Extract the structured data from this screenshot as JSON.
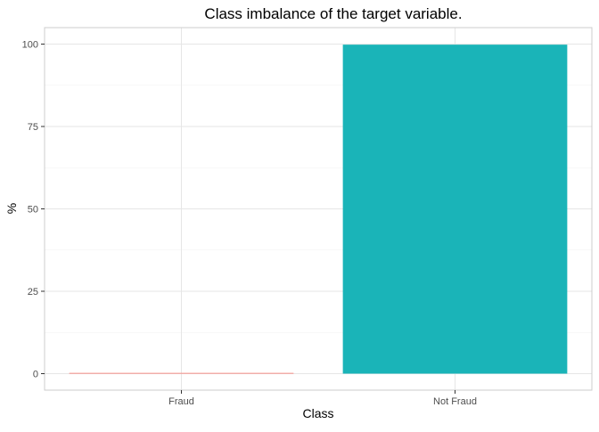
{
  "chart_data": {
    "type": "bar",
    "title": "Class imbalance of the target variable.",
    "xlabel": "Class",
    "ylabel": "%",
    "categories": [
      "Fraud",
      "Not Fraud"
    ],
    "values": [
      0.17,
      99.83
    ],
    "colors": [
      "#F8766D",
      "#1AB4B8"
    ],
    "ylim": [
      -5,
      105
    ],
    "yticks": [
      0,
      25,
      50,
      75,
      100
    ],
    "ytick_labels": [
      "0",
      "25",
      "50",
      "75",
      "100"
    ],
    "grid": true,
    "legend": "none"
  }
}
